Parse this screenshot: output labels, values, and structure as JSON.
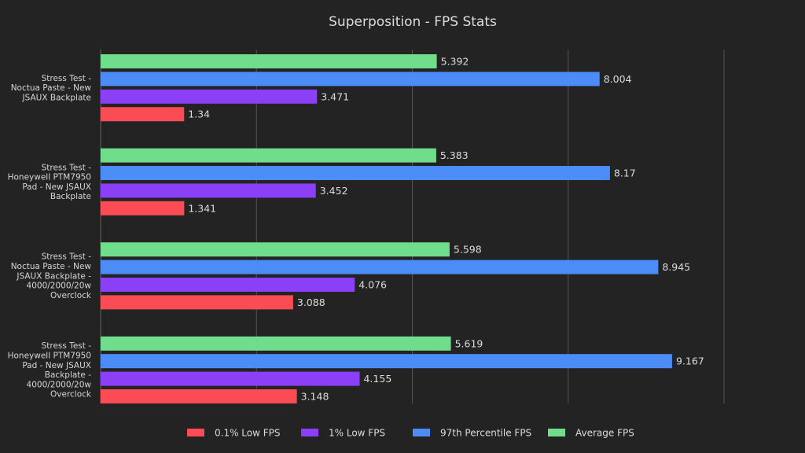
{
  "chart_data": {
    "type": "bar",
    "orientation": "horizontal",
    "title": "Superposition - FPS Stats",
    "xlabel": "",
    "ylabel": "",
    "xlim": [
      0,
      10
    ],
    "grid": true,
    "legend_position": "bottom",
    "categories": [
      [
        "Stress Test -",
        "Noctua Paste - New",
        "JSAUX Backplate"
      ],
      [
        "Stress Test -",
        "Honeywell PTM7950",
        "Pad - New JSAUX",
        "Backplate"
      ],
      [
        "Stress Test -",
        "Noctua Paste - New",
        "JSAUX Backplate -",
        "4000/2000/20w",
        "Overclock"
      ],
      [
        "Stress Test -",
        "Honeywell PTM7950",
        "Pad - New JSAUX",
        "Backplate -",
        "4000/2000/20w",
        "Overclock"
      ]
    ],
    "series": [
      {
        "name": "Average FPS",
        "color": "#6fdd8b",
        "values": [
          5.392,
          5.383,
          5.598,
          5.619
        ],
        "labels": [
          "5.392",
          "5.383",
          "5.598",
          "5.619"
        ]
      },
      {
        "name": "97th Percentile FPS",
        "color": "#4c8cf6",
        "values": [
          8.004,
          8.17,
          8.945,
          9.167
        ],
        "labels": [
          "8.004",
          "8.17",
          "8.945",
          "9.167"
        ]
      },
      {
        "name": "1% Low FPS",
        "color": "#8b3ff7",
        "values": [
          3.471,
          3.452,
          4.076,
          4.155
        ],
        "labels": [
          "3.471",
          "3.452",
          "4.076",
          "4.155"
        ]
      },
      {
        "name": "0.1% Low FPS",
        "color": "#fb4b55",
        "values": [
          1.34,
          1.341,
          3.088,
          3.148
        ],
        "labels": [
          "1.34",
          "1.341",
          "3.088",
          "3.148"
        ]
      }
    ],
    "legend_order": [
      "0.1% Low FPS",
      "1% Low FPS",
      "97th Percentile FPS",
      "Average FPS"
    ]
  }
}
